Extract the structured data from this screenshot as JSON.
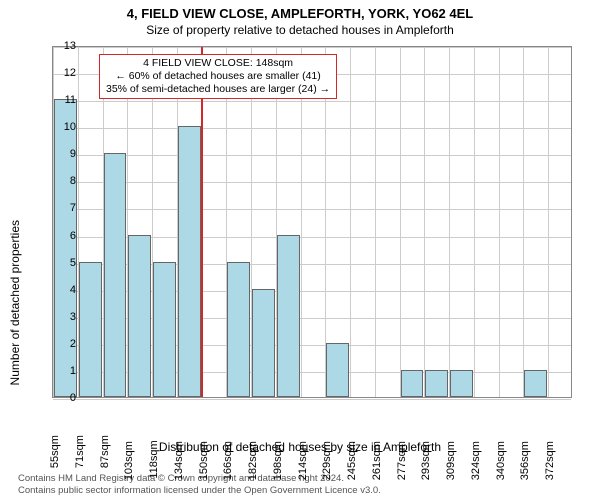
{
  "title_line1": "4, FIELD VIEW CLOSE, AMPLEFORTH, YORK, YO62 4EL",
  "title_line2": "Size of property relative to detached houses in Ampleforth",
  "y_axis": {
    "label": "Number of detached properties",
    "min": 0,
    "max": 13,
    "ticks": [
      0,
      1,
      2,
      3,
      4,
      5,
      6,
      7,
      8,
      9,
      10,
      11,
      12,
      13
    ]
  },
  "x_axis": {
    "label": "Distribution of detached houses by size in Ampleforth",
    "tick_labels": [
      "55sqm",
      "71sqm",
      "87sqm",
      "103sqm",
      "118sqm",
      "134sqm",
      "150sqm",
      "166sqm",
      "182sqm",
      "198sqm",
      "214sqm",
      "229sqm",
      "245sqm",
      "261sqm",
      "277sqm",
      "293sqm",
      "309sqm",
      "324sqm",
      "340sqm",
      "356sqm",
      "372sqm"
    ],
    "n_slots": 21
  },
  "bars": {
    "values": [
      11,
      5,
      9,
      6,
      5,
      10,
      0,
      5,
      4,
      6,
      0,
      2,
      0,
      0,
      1,
      1,
      1,
      0,
      0,
      1,
      0
    ],
    "color": "#add8e6",
    "border": "#666666",
    "width_frac": 0.92
  },
  "reference": {
    "slot": 6,
    "color": "#d62728",
    "box": {
      "line1": "4 FIELD VIEW CLOSE: 148sqm",
      "line2": "← 60% of detached houses are smaller (41)",
      "line3": "35% of semi-detached houses are larger (24) →"
    }
  },
  "grid": {
    "color": "#cccccc"
  },
  "footer": {
    "line1": "Contains HM Land Registry data © Crown copyright and database right 2024.",
    "line2": "Contains public sector information licensed under the Open Government Licence v3.0."
  },
  "fontsizes": {
    "title": 13,
    "subtitle": 12,
    "axis_label": 12,
    "tick": 11,
    "anno": 10.5,
    "footer": 9.5
  }
}
